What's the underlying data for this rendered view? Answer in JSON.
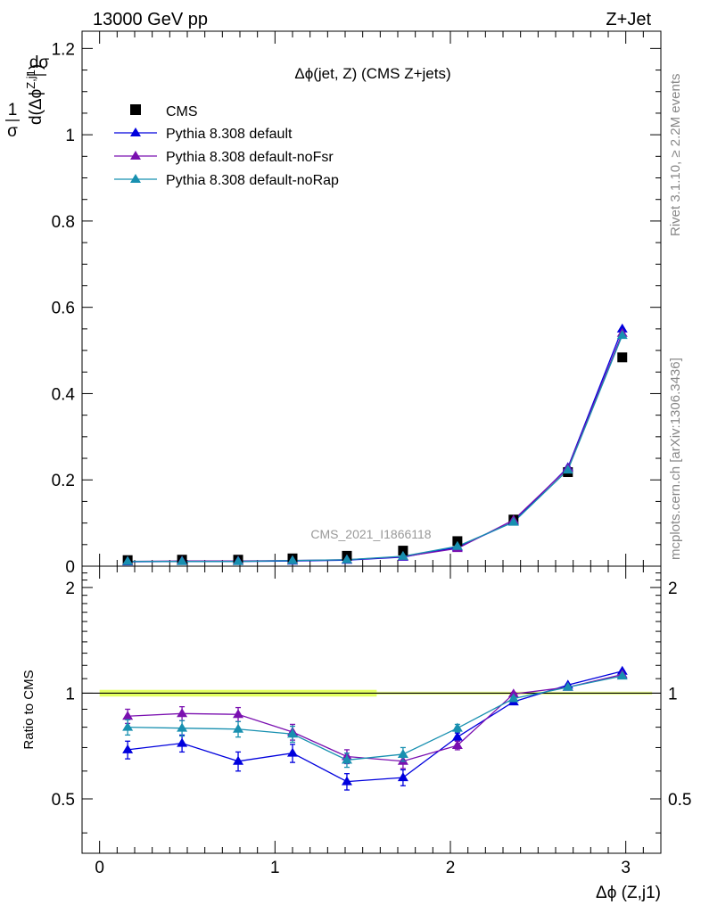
{
  "header": {
    "energy_label": "13000 GeV pp",
    "process_label": "Z+Jet"
  },
  "side_labels": {
    "rivet": "Rivet 3.1.10, ≥ 2.2M events",
    "mcplots": "mcplots.cern.ch [arXiv:1306.3436]"
  },
  "watermark": "CMS_2021_I1866118",
  "colors": {
    "cms": "#000000",
    "default": "#0000dd",
    "noFsr": "#7a10b0",
    "noRap": "#1890b0",
    "band": "#ddff44"
  },
  "chart_data": [
    {
      "type": "scatter",
      "title": "Δϕ(jet, Z) (CMS Z+jets)",
      "ylabel": "1/σ dσ/d(Δϕ^{Z,j1})",
      "xlim": [
        -0.1,
        3.2
      ],
      "ylim": [
        0,
        1.24
      ],
      "yticks": [
        "0",
        "0.2",
        "0.4",
        "0.6",
        "0.8",
        "1",
        "1.2"
      ],
      "x": [
        0.16,
        0.47,
        0.79,
        1.1,
        1.41,
        1.73,
        2.04,
        2.36,
        2.67,
        2.98
      ],
      "series": [
        {
          "name": "CMS",
          "marker": "square",
          "values": [
            0.014,
            0.015,
            0.015,
            0.018,
            0.024,
            0.036,
            0.058,
            0.108,
            0.218,
            0.484
          ]
        },
        {
          "name": "Pythia 8.308 default",
          "marker": "triangle",
          "values": [
            0.01,
            0.011,
            0.011,
            0.012,
            0.014,
            0.021,
            0.044,
            0.103,
            0.229,
            0.55
          ]
        },
        {
          "name": "Pythia 8.308 default-noFsr",
          "marker": "triangle",
          "values": [
            0.011,
            0.012,
            0.012,
            0.013,
            0.015,
            0.022,
            0.041,
            0.107,
            0.227,
            0.54
          ]
        },
        {
          "name": "Pythia 8.308 default-noRap",
          "marker": "triangle",
          "values": [
            0.011,
            0.011,
            0.011,
            0.013,
            0.015,
            0.023,
            0.046,
            0.102,
            0.223,
            0.535
          ]
        }
      ],
      "legend_placement": "top-left"
    },
    {
      "type": "line",
      "ylabel": "Ratio to CMS",
      "xlabel": "Δϕ (Z,j1)",
      "xlim": [
        -0.1,
        3.2
      ],
      "ylim": [
        0.35,
        2.3
      ],
      "xticks": [
        "0",
        "1",
        "2",
        "3"
      ],
      "yticks": [
        "0.5",
        "1",
        "2"
      ],
      "x": [
        0.16,
        0.47,
        0.79,
        1.1,
        1.41,
        1.73,
        2.04,
        2.36,
        2.67,
        2.98
      ],
      "series": [
        {
          "name": "Pythia 8.308 default",
          "values": [
            0.69,
            0.72,
            0.64,
            0.675,
            0.56,
            0.575,
            0.75,
            0.945,
            1.055,
            1.155
          ],
          "errors": [
            0.04,
            0.04,
            0.04,
            0.04,
            0.03,
            0.03,
            0.02,
            0.01,
            0.005,
            0.005
          ]
        },
        {
          "name": "Pythia 8.308 default-noFsr",
          "values": [
            0.86,
            0.875,
            0.87,
            0.775,
            0.66,
            0.64,
            0.71,
            0.995,
            1.04,
            1.13
          ],
          "errors": [
            0.04,
            0.04,
            0.04,
            0.04,
            0.03,
            0.03,
            0.02,
            0.01,
            0.005,
            0.005
          ]
        },
        {
          "name": "Pythia 8.308 default-noRap",
          "values": [
            0.8,
            0.795,
            0.79,
            0.765,
            0.645,
            0.67,
            0.795,
            0.965,
            1.04,
            1.12
          ],
          "errors": [
            0.04,
            0.04,
            0.04,
            0.04,
            0.03,
            0.03,
            0.02,
            0.01,
            0.005,
            0.005
          ]
        }
      ]
    }
  ]
}
